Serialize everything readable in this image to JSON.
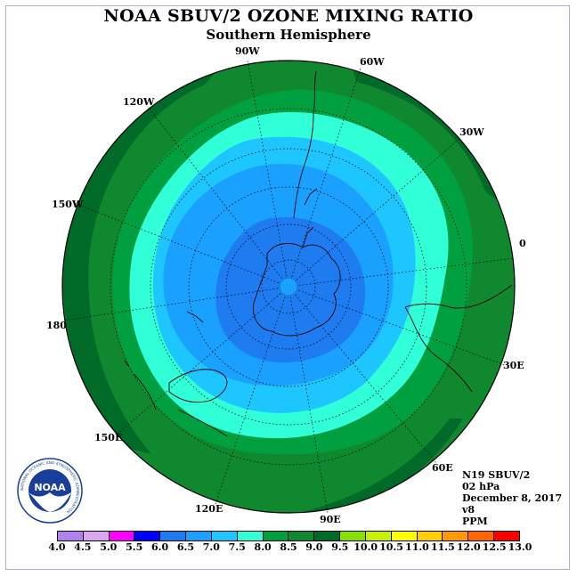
{
  "header": {
    "title": "NOAA SBUV/2 OZONE MIXING RATIO",
    "subtitle": "Southern Hemisphere"
  },
  "map": {
    "projection": "polar-stereographic-south",
    "longitude_labels": [
      "90W",
      "60W",
      "30W",
      "0",
      "30E",
      "60E",
      "90E",
      "120E",
      "150E",
      "180",
      "150W",
      "120W"
    ],
    "contour_levels_ppm_outer_to_inner": [
      8.5,
      8.0,
      7.5,
      7.0,
      6.5,
      6.0
    ]
  },
  "info": {
    "instrument": "N19 SBUV/2",
    "pressure": "02 hPa",
    "date": "December 8, 2017",
    "version": "v8",
    "units": "PPM"
  },
  "logo": {
    "text": "NOAA",
    "ring_text": "NATIONAL OCEANIC AND ATMOSPHERIC ADMINISTRATION"
  },
  "legend": {
    "ticks": [
      "4.0",
      "4.5",
      "5.0",
      "5.5",
      "6.0",
      "6.5",
      "7.0",
      "7.5",
      "8.0",
      "8.5",
      "9.0",
      "9.5",
      "10.0",
      "10.5",
      "11.0",
      "11.5",
      "12.0",
      "12.5",
      "13.0"
    ],
    "colors": [
      "#b380f0",
      "#d9a6f0",
      "#ff00ff",
      "#0000ff",
      "#1e7cf0",
      "#1aa0ff",
      "#1ec6ff",
      "#30ffd8",
      "#00a040",
      "#108830",
      "#006a28",
      "#88e000",
      "#c8f000",
      "#ffff00",
      "#ffcc00",
      "#ff9900",
      "#ff6600",
      "#ff0000",
      "#9b5a3c"
    ]
  },
  "colors": {
    "ring_8_5": "#108830",
    "ring_9_0": "#006a28",
    "ring_8_0": "#00a040",
    "ring_7_5": "#30ffd8",
    "ring_7_0": "#1ec6ff",
    "ring_6_5": "#1aa0ff",
    "ring_6_0": "#1e7cf0"
  }
}
